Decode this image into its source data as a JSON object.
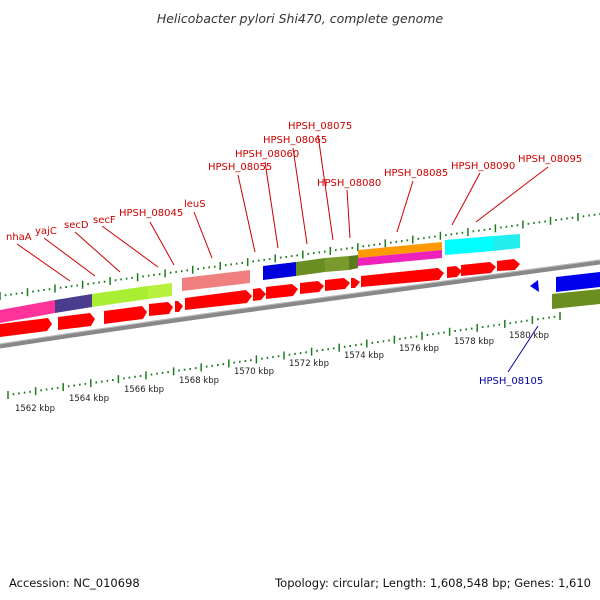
{
  "title": "Helicobacter pylori Shi470, complete genome",
  "footer": {
    "accession": "Accession: NC_010698",
    "summary": "Topology: circular; Length: 1,608,548 bp; Genes: 1,610"
  },
  "colors": {
    "gene_label_forward": "#cc0000",
    "gene_label_reverse": "#0000aa",
    "cds_arrow": "#ff0000",
    "backbone": "#888888",
    "tick": "#1e7a1e"
  },
  "gene_labels": [
    {
      "text": "nhaA",
      "strand": "forward"
    },
    {
      "text": "yajC",
      "strand": "forward"
    },
    {
      "text": "secD",
      "strand": "forward"
    },
    {
      "text": "secF",
      "strand": "forward"
    },
    {
      "text": "HPSH_08045",
      "strand": "forward"
    },
    {
      "text": "leuS",
      "strand": "forward"
    },
    {
      "text": "HPSH_08055",
      "strand": "forward"
    },
    {
      "text": "HPSH_08060",
      "strand": "forward"
    },
    {
      "text": "HPSH_08065",
      "strand": "forward"
    },
    {
      "text": "HPSH_08075",
      "strand": "forward"
    },
    {
      "text": "HPSH_08080",
      "strand": "forward"
    },
    {
      "text": "HPSH_08085",
      "strand": "forward"
    },
    {
      "text": "HPSH_08090",
      "strand": "forward"
    },
    {
      "text": "HPSH_08095",
      "strand": "forward"
    },
    {
      "text": "HPSH_08105",
      "strand": "reverse"
    }
  ],
  "kbp_labels": [
    "1562 kbp",
    "1564 kbp",
    "1566 kbp",
    "1568 kbp",
    "1570 kbp",
    "1572 kbp",
    "1574 kbp",
    "1576 kbp",
    "1578 kbp",
    "1580 kbp"
  ]
}
